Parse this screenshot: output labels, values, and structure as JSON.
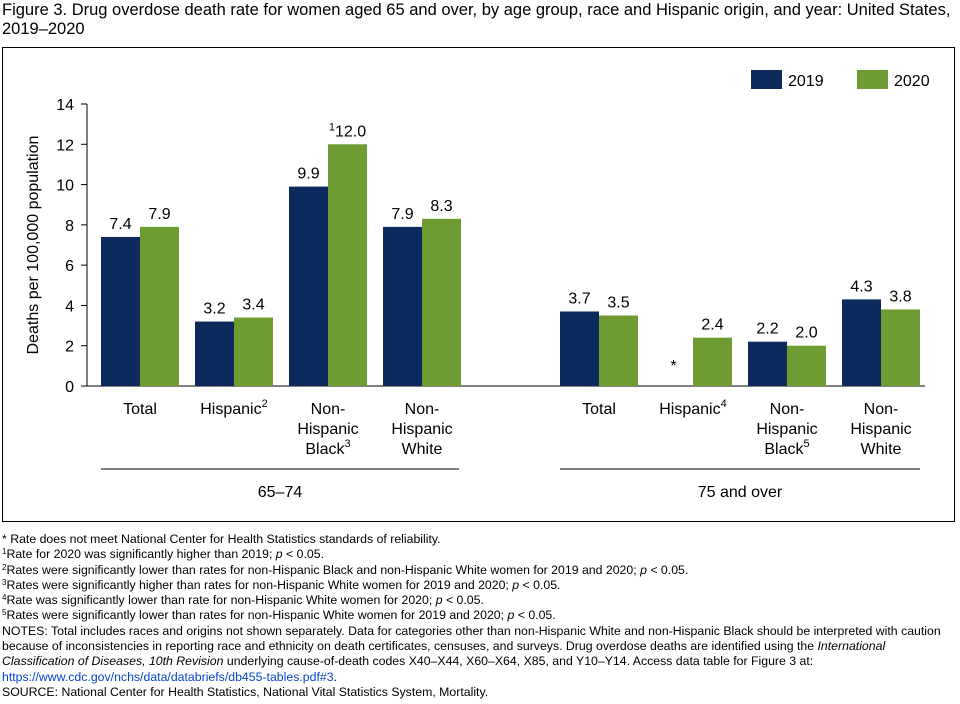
{
  "title": "Figure 3. Drug overdose death rate for women aged 65 and over, by age group, race and Hispanic origin, and year: United States, 2019–2020",
  "chart_data": {
    "type": "bar",
    "ylabel": "Deaths per 100,000 population",
    "ylim": [
      0,
      14
    ],
    "yticks": [
      "0",
      "2",
      "4",
      "6",
      "8",
      "10",
      "12",
      "14"
    ],
    "grid": false,
    "legend_position": "top-right",
    "series": [
      {
        "name": "2019",
        "color": "#0c2a5b"
      },
      {
        "name": "2020",
        "color": "#6e9b32"
      }
    ],
    "groups": [
      {
        "label": "65–74",
        "categories": [
          {
            "label": "Total",
            "sup": "",
            "values": [
              7.4,
              7.9
            ],
            "display": [
              "7.4",
              "7.9"
            ],
            "prefix": [
              "",
              ""
            ]
          },
          {
            "label": "Hispanic",
            "sup": "2",
            "values": [
              3.2,
              3.4
            ],
            "display": [
              "3.2",
              "3.4"
            ],
            "prefix": [
              "",
              ""
            ]
          },
          {
            "label": "Non-\nHispanic\nBlack",
            "sup": "3",
            "values": [
              9.9,
              12.0
            ],
            "display": [
              "9.9",
              "12.0"
            ],
            "prefix": [
              "",
              "1"
            ]
          },
          {
            "label": "Non-\nHispanic\nWhite",
            "sup": "",
            "values": [
              7.9,
              8.3
            ],
            "display": [
              "7.9",
              "8.3"
            ],
            "prefix": [
              "",
              ""
            ]
          }
        ]
      },
      {
        "label": "75 and over",
        "categories": [
          {
            "label": "Total",
            "sup": "",
            "values": [
              3.7,
              3.5
            ],
            "display": [
              "3.7",
              "3.5"
            ],
            "prefix": [
              "",
              ""
            ]
          },
          {
            "label": "Hispanic",
            "sup": "4",
            "values": [
              null,
              2.4
            ],
            "display": [
              "*",
              "2.4"
            ],
            "prefix": [
              "",
              ""
            ]
          },
          {
            "label": "Non-\nHispanic\nBlack",
            "sup": "5",
            "values": [
              2.2,
              2.0
            ],
            "display": [
              "2.2",
              "2.0"
            ],
            "prefix": [
              "",
              ""
            ]
          },
          {
            "label": "Non-\nHispanic\nWhite",
            "sup": "",
            "values": [
              4.3,
              3.8
            ],
            "display": [
              "4.3",
              "3.8"
            ],
            "prefix": [
              "",
              ""
            ]
          }
        ]
      }
    ]
  },
  "footnotes": {
    "star": "* Rate does not meet National Center for Health Statistics standards of reliability.",
    "f1": {
      "sup": "1",
      "text": "Rate for 2020 was significantly higher than 2019; ",
      "p": "p",
      "rest": " < 0.05."
    },
    "f2": {
      "sup": "2",
      "text": "Rates were significantly lower than rates for non-Hispanic Black and non-Hispanic White women for 2019 and 2020; ",
      "p": "p",
      "rest": " < 0.05."
    },
    "f3": {
      "sup": "3",
      "text": "Rates were significantly higher than rates for non-Hispanic White women for 2019 and 2020; ",
      "p": "p",
      "rest": " < 0.05."
    },
    "f4": {
      "sup": "4",
      "text": "Rate was significantly lower than rate for non-Hispanic White women for 2020; ",
      "p": "p",
      "rest": " < 0.05."
    },
    "f5": {
      "sup": "5",
      "text": "Rates were significantly lower than rates for non-Hispanic White women for 2019 and 2020; ",
      "p": "p",
      "rest": " < 0.05."
    },
    "notes_1": "NOTES: Total includes races and origins not shown separately. Data for categories other than non-Hispanic White and non-Hispanic Black should be interpreted with caution because of inconsistencies in reporting race and ethnicity on death certificates, censuses, and surveys. Drug overdose deaths are identified using the ",
    "notes_icd": "International Classification of Diseases, 10th Revision",
    "notes_2": " underlying cause-of-death codes X40–X44, X60–X64, X85, and Y10–Y14. Access data table for Figure 3 at:",
    "link": "https://www.cdc.gov/nchs/data/databriefs/db455-tables.pdf#3",
    "link_tail": ".",
    "source": "SOURCE: National Center for Health Statistics, National Vital Statistics System, Mortality."
  }
}
